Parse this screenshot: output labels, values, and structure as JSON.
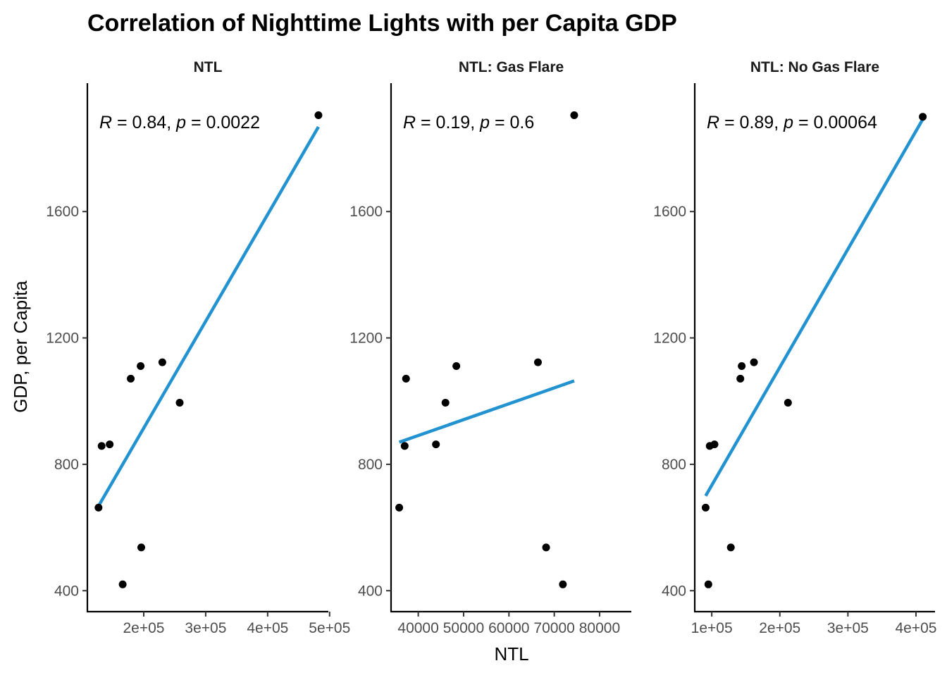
{
  "colors": {
    "fit_line": "#2293d0",
    "points": "#000000",
    "axis": "#000000",
    "tick_text": "#4d4d4d"
  },
  "chart_data": {
    "type": "scatter",
    "title": "Correlation of Nighttime Lights with per Capita GDP",
    "xlabel": "NTL",
    "ylabel": "GDP, per Capita",
    "grid": false,
    "ylim": [
      385,
      1935
    ],
    "y_ticks": [
      400,
      800,
      1200,
      1600
    ],
    "y_tick_labels": [
      "400",
      "800",
      "1200",
      "1600"
    ],
    "panels": [
      {
        "strip_label": "NTL",
        "stat_label": {
          "r": "0.84",
          "p": "0.0022"
        },
        "xlim": [
          109000,
          498000
        ],
        "x_ticks": [
          200000,
          300000,
          400000,
          500000
        ],
        "x_tick_labels": [
          "2e+05",
          "3e+05",
          "4e+05",
          "5e+05"
        ],
        "points": [
          {
            "x": 127000,
            "y": 663
          },
          {
            "x": 132000,
            "y": 858
          },
          {
            "x": 145000,
            "y": 863
          },
          {
            "x": 166000,
            "y": 420
          },
          {
            "x": 179000,
            "y": 1071
          },
          {
            "x": 195000,
            "y": 1111
          },
          {
            "x": 196000,
            "y": 537
          },
          {
            "x": 230000,
            "y": 1123
          },
          {
            "x": 258000,
            "y": 995
          },
          {
            "x": 482000,
            "y": 1905
          }
        ],
        "fit": {
          "x": [
            127000,
            482000
          ],
          "y": [
            668,
            1868
          ]
        }
      },
      {
        "strip_label": "NTL: Gas Flare",
        "stat_label": {
          "r": "0.19",
          "p": "0.6"
        },
        "xlim": [
          34000,
          87000
        ],
        "x_ticks": [
          40000,
          50000,
          60000,
          70000,
          80000
        ],
        "x_tick_labels": [
          "40000",
          "50000",
          "60000",
          "70000",
          "80000"
        ],
        "points": [
          {
            "x": 35800,
            "y": 663
          },
          {
            "x": 37000,
            "y": 858
          },
          {
            "x": 37300,
            "y": 1071
          },
          {
            "x": 43900,
            "y": 863
          },
          {
            "x": 46000,
            "y": 995
          },
          {
            "x": 48400,
            "y": 1111
          },
          {
            "x": 66400,
            "y": 1123
          },
          {
            "x": 68200,
            "y": 537
          },
          {
            "x": 71900,
            "y": 420
          },
          {
            "x": 74400,
            "y": 1905
          }
        ],
        "fit": {
          "x": [
            35800,
            74400
          ],
          "y": [
            870,
            1064
          ]
        }
      },
      {
        "strip_label": "NTL: No Gas Flare",
        "stat_label": {
          "r": "0.89",
          "p": "0.00064"
        },
        "xlim": [
          75000,
          428000
        ],
        "x_ticks": [
          100000,
          200000,
          300000,
          400000
        ],
        "x_tick_labels": [
          "1e+05",
          "2e+05",
          "3e+05",
          "4e+05"
        ],
        "points": [
          {
            "x": 91000,
            "y": 663
          },
          {
            "x": 95000,
            "y": 420
          },
          {
            "x": 97000,
            "y": 858
          },
          {
            "x": 104000,
            "y": 863
          },
          {
            "x": 128000,
            "y": 537
          },
          {
            "x": 142000,
            "y": 1071
          },
          {
            "x": 144000,
            "y": 1111
          },
          {
            "x": 162000,
            "y": 1123
          },
          {
            "x": 212000,
            "y": 995
          },
          {
            "x": 410000,
            "y": 1900
          }
        ],
        "fit": {
          "x": [
            91000,
            410000
          ],
          "y": [
            700,
            1892
          ]
        }
      }
    ]
  }
}
